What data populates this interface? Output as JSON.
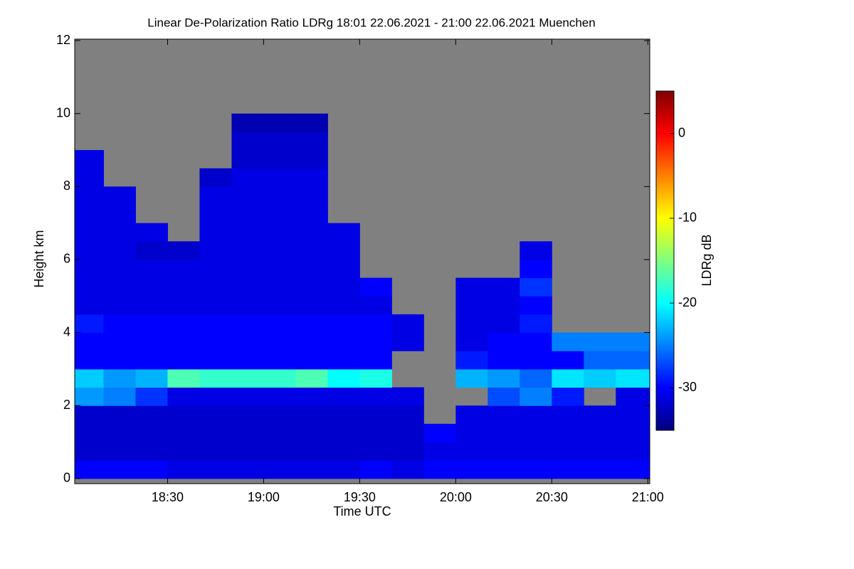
{
  "chart_data": {
    "type": "heatmap",
    "title": "Linear De-Polarization Ratio LDRg   18:01 22.06.2021 - 21:00 22.06.2021 Muenchen",
    "x_label": "Time UTC",
    "y_label": "Height km",
    "colorbar_label": "LDRg dB",
    "xlim": [
      18.0167,
      21.01
    ],
    "xticks": [
      {
        "value": 18.5,
        "label": "18:30"
      },
      {
        "value": 19,
        "label": "19:00"
      },
      {
        "value": 19.5,
        "label": "19:30"
      },
      {
        "value": 20,
        "label": "20:00"
      },
      {
        "value": 20.5,
        "label": "20:30"
      },
      {
        "value": 21,
        "label": "21:00"
      }
    ],
    "ylim": [
      -0.14,
      12.04
    ],
    "yticks": [
      0,
      2,
      4,
      6,
      8,
      10,
      12
    ],
    "clim": [
      -35,
      5
    ],
    "cticks": [
      0,
      -10,
      -20,
      -30
    ],
    "colorscale": [
      "#00007f",
      "#0000ff",
      "#0080ff",
      "#00ffff",
      "#80ff80",
      "#ffff00",
      "#ff8000",
      "#ff0000",
      "#7f0000"
    ],
    "missing_color": "#808080",
    "xbins": [
      18.0167,
      18.1667,
      18.3333,
      18.5,
      18.6667,
      18.8333,
      19,
      19.1667,
      19.3333,
      19.5,
      19.6667,
      19.8333,
      20,
      20.1667,
      20.3333,
      20.5,
      20.6667,
      20.8333,
      21.01
    ],
    "ybins": [
      0,
      0.5,
      1,
      1.5,
      2,
      2.5,
      3,
      3.5,
      4,
      4.5,
      5,
      5.5,
      6,
      6.5,
      7,
      7.5,
      8,
      8.5,
      9,
      9.5,
      10,
      10.5,
      11,
      11.5,
      12
    ],
    "values": [
      [
        -30,
        -30,
        -30,
        -31,
        -31,
        -31,
        -31,
        -31,
        -31,
        -30,
        -31,
        -30,
        -30,
        -30,
        -30,
        -30,
        -30,
        -30
      ],
      [
        -32,
        -32,
        -32,
        -32,
        -32,
        -32,
        -32,
        -32,
        -32,
        -32,
        -32,
        -31,
        -31,
        -31,
        -31,
        -31,
        -31,
        -31
      ],
      [
        -32,
        -32,
        -32,
        -32,
        -32,
        -32,
        -32,
        -32,
        -32,
        -32,
        -32,
        -30,
        -31,
        -31,
        -31,
        -31,
        -31,
        -31
      ],
      [
        -32,
        -32,
        -32,
        -32,
        -32,
        -32,
        -32,
        -32,
        -32,
        -32,
        -32,
        null,
        -31,
        -31,
        -31,
        -31,
        -31,
        -31
      ],
      [
        -24,
        -25,
        -28,
        -31,
        -31,
        -31,
        -31,
        -31,
        -31,
        -31,
        -31,
        null,
        null,
        -27,
        -25,
        -29,
        null,
        -31
      ],
      [
        -22,
        -24,
        -23,
        -17,
        -18,
        -18,
        -18,
        -17,
        -20,
        -19,
        null,
        null,
        -23,
        -24,
        -26,
        -21,
        -22,
        -21
      ],
      [
        -30,
        -30,
        -30,
        -30,
        -30,
        -30,
        -30,
        -30,
        -30,
        -30,
        null,
        null,
        -29,
        -30,
        -30,
        -30,
        -26,
        -26
      ],
      [
        -30,
        -30,
        -30,
        -30,
        -30,
        -30,
        -30,
        -30,
        -30,
        -30,
        -31,
        null,
        -31,
        -30,
        -30,
        -25,
        -25,
        -25
      ],
      [
        -29,
        -30,
        -30,
        -30,
        -30,
        -30,
        -30,
        -30,
        -30,
        -30,
        -31,
        null,
        -31,
        -31,
        -29,
        null,
        null,
        null
      ],
      [
        -31,
        -31,
        -31,
        -31,
        -31,
        -31,
        -31,
        -31,
        -31,
        -31,
        null,
        null,
        -31,
        -31,
        -30,
        null,
        null,
        null
      ],
      [
        -31,
        -31,
        -31,
        -31,
        -31,
        -31,
        -31,
        -31,
        -31,
        -30,
        null,
        null,
        -31,
        -31,
        -28,
        null,
        null,
        null
      ],
      [
        -31,
        -31,
        -31,
        -31,
        -31,
        -31,
        -31,
        -31,
        -31,
        null,
        null,
        null,
        null,
        null,
        -30,
        null,
        null,
        null
      ],
      [
        -31,
        -31,
        -32,
        -32,
        -31,
        -31,
        -31,
        -31,
        -31,
        null,
        null,
        null,
        null,
        null,
        -31,
        null,
        null,
        null
      ],
      [
        -31,
        -31,
        -31,
        null,
        -31,
        -31,
        -31,
        -31,
        -31,
        null,
        null,
        null,
        null,
        null,
        null,
        null,
        null,
        null
      ],
      [
        -31,
        -31,
        null,
        null,
        -31,
        -31,
        -31,
        -31,
        null,
        null,
        null,
        null,
        null,
        null,
        null,
        null,
        null,
        null
      ],
      [
        -31,
        -31,
        null,
        null,
        -31,
        -31,
        -31,
        -31,
        null,
        null,
        null,
        null,
        null,
        null,
        null,
        null,
        null,
        null
      ],
      [
        -31,
        null,
        null,
        null,
        -32,
        -31,
        -31,
        -31,
        null,
        null,
        null,
        null,
        null,
        null,
        null,
        null,
        null,
        null
      ],
      [
        -31,
        null,
        null,
        null,
        null,
        -32,
        -32,
        -32,
        null,
        null,
        null,
        null,
        null,
        null,
        null,
        null,
        null,
        null
      ],
      [
        null,
        null,
        null,
        null,
        null,
        -32,
        -32,
        -32,
        null,
        null,
        null,
        null,
        null,
        null,
        null,
        null,
        null,
        null
      ],
      [
        null,
        null,
        null,
        null,
        null,
        -33,
        -33,
        -33,
        null,
        null,
        null,
        null,
        null,
        null,
        null,
        null,
        null,
        null
      ],
      [
        null,
        null,
        null,
        null,
        null,
        null,
        null,
        null,
        null,
        null,
        null,
        null,
        null,
        null,
        null,
        null,
        null,
        null
      ],
      [
        null,
        null,
        null,
        null,
        null,
        null,
        null,
        null,
        null,
        null,
        null,
        null,
        null,
        null,
        null,
        null,
        null,
        null
      ],
      [
        null,
        null,
        null,
        null,
        null,
        null,
        null,
        null,
        null,
        null,
        null,
        null,
        null,
        null,
        null,
        null,
        null,
        null
      ],
      [
        null,
        null,
        null,
        null,
        null,
        null,
        null,
        null,
        null,
        null,
        null,
        null,
        null,
        null,
        null,
        null,
        null,
        null
      ]
    ]
  }
}
